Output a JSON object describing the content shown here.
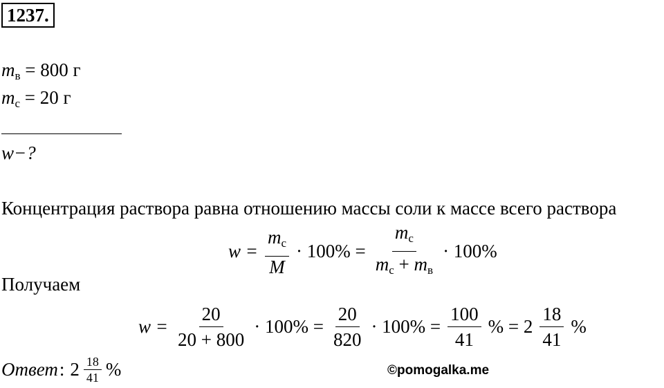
{
  "problem_number": "1237.",
  "given": [
    {
      "symbol": "m",
      "sub": "в",
      "rest": "= 800 г"
    },
    {
      "symbol": "m",
      "sub": "с",
      "rest": "= 20 г"
    }
  ],
  "find": "w−?",
  "explanation": "Концентрация раствора равна отношению массы соли к массе всего раствора",
  "formula_1": {
    "lhs": "w =",
    "f1_num": "m",
    "f1_num_sub": "с",
    "f1_den": "M",
    "mul1": "· 100% =",
    "f2_num": "m",
    "f2_num_sub": "с",
    "f2_den_a": "m",
    "f2_den_a_sub": "с",
    "f2_den_plus": "+",
    "f2_den_b": "m",
    "f2_den_b_sub": "в",
    "mul2": "· 100%"
  },
  "intro_2": "Получаем",
  "formula_2": {
    "lhs": "w =",
    "f1_num": "20",
    "f1_den": "20 + 800",
    "mul1": "· 100% =",
    "f2_num": "20",
    "f2_den": "820",
    "mul2": "· 100% =",
    "f3_num": "100",
    "f3_den": "41",
    "mid": "% = 2",
    "f4_num": "18",
    "f4_den": "41",
    "end": "%"
  },
  "answer": {
    "label": "Ответ",
    "colon": ":",
    "whole": "2",
    "num": "18",
    "den": "41",
    "percent": "%"
  },
  "watermark": "©pomogalka.me"
}
